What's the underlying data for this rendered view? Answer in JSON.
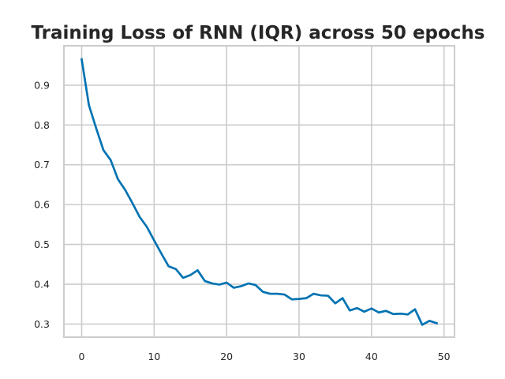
{
  "chart_data": {
    "type": "line",
    "title": "Training Loss of RNN (IQR) across 50 epochs",
    "xlabel": "",
    "ylabel": "",
    "xlim": [
      -2.45,
      51.45
    ],
    "ylim": [
      0.267,
      0.999
    ],
    "x_ticks": [
      0,
      10,
      20,
      30,
      40,
      50
    ],
    "y_ticks": [
      0.3,
      0.4,
      0.5,
      0.6,
      0.7,
      0.8,
      0.9
    ],
    "x_tick_labels": [
      "0",
      "10",
      "20",
      "30",
      "40",
      "50"
    ],
    "y_tick_labels": [
      "0.3",
      "0.4",
      "0.5",
      "0.6",
      "0.7",
      "0.8",
      "0.9"
    ],
    "grid": true,
    "legend": false,
    "series_color": "#0173b2",
    "series": [
      {
        "x": [
          0,
          1,
          2,
          3,
          4,
          5,
          6,
          7,
          8,
          9,
          10,
          11,
          12,
          13,
          14,
          15,
          16,
          17,
          18,
          19,
          20,
          21,
          22,
          23,
          24,
          25,
          26,
          27,
          28,
          29,
          30,
          31,
          32,
          33,
          34,
          35,
          36,
          37,
          38,
          39,
          40,
          41,
          42,
          43,
          44,
          45,
          46,
          47,
          48,
          49
        ],
        "values": [
          0.965,
          0.85,
          0.792,
          0.737,
          0.712,
          0.664,
          0.637,
          0.604,
          0.569,
          0.544,
          0.51,
          0.477,
          0.445,
          0.438,
          0.416,
          0.423,
          0.435,
          0.408,
          0.402,
          0.399,
          0.404,
          0.391,
          0.395,
          0.402,
          0.398,
          0.381,
          0.376,
          0.376,
          0.374,
          0.362,
          0.363,
          0.365,
          0.376,
          0.372,
          0.371,
          0.352,
          0.365,
          0.334,
          0.34,
          0.331,
          0.339,
          0.329,
          0.333,
          0.325,
          0.326,
          0.324,
          0.337,
          0.298,
          0.308,
          0.302
        ]
      }
    ]
  }
}
